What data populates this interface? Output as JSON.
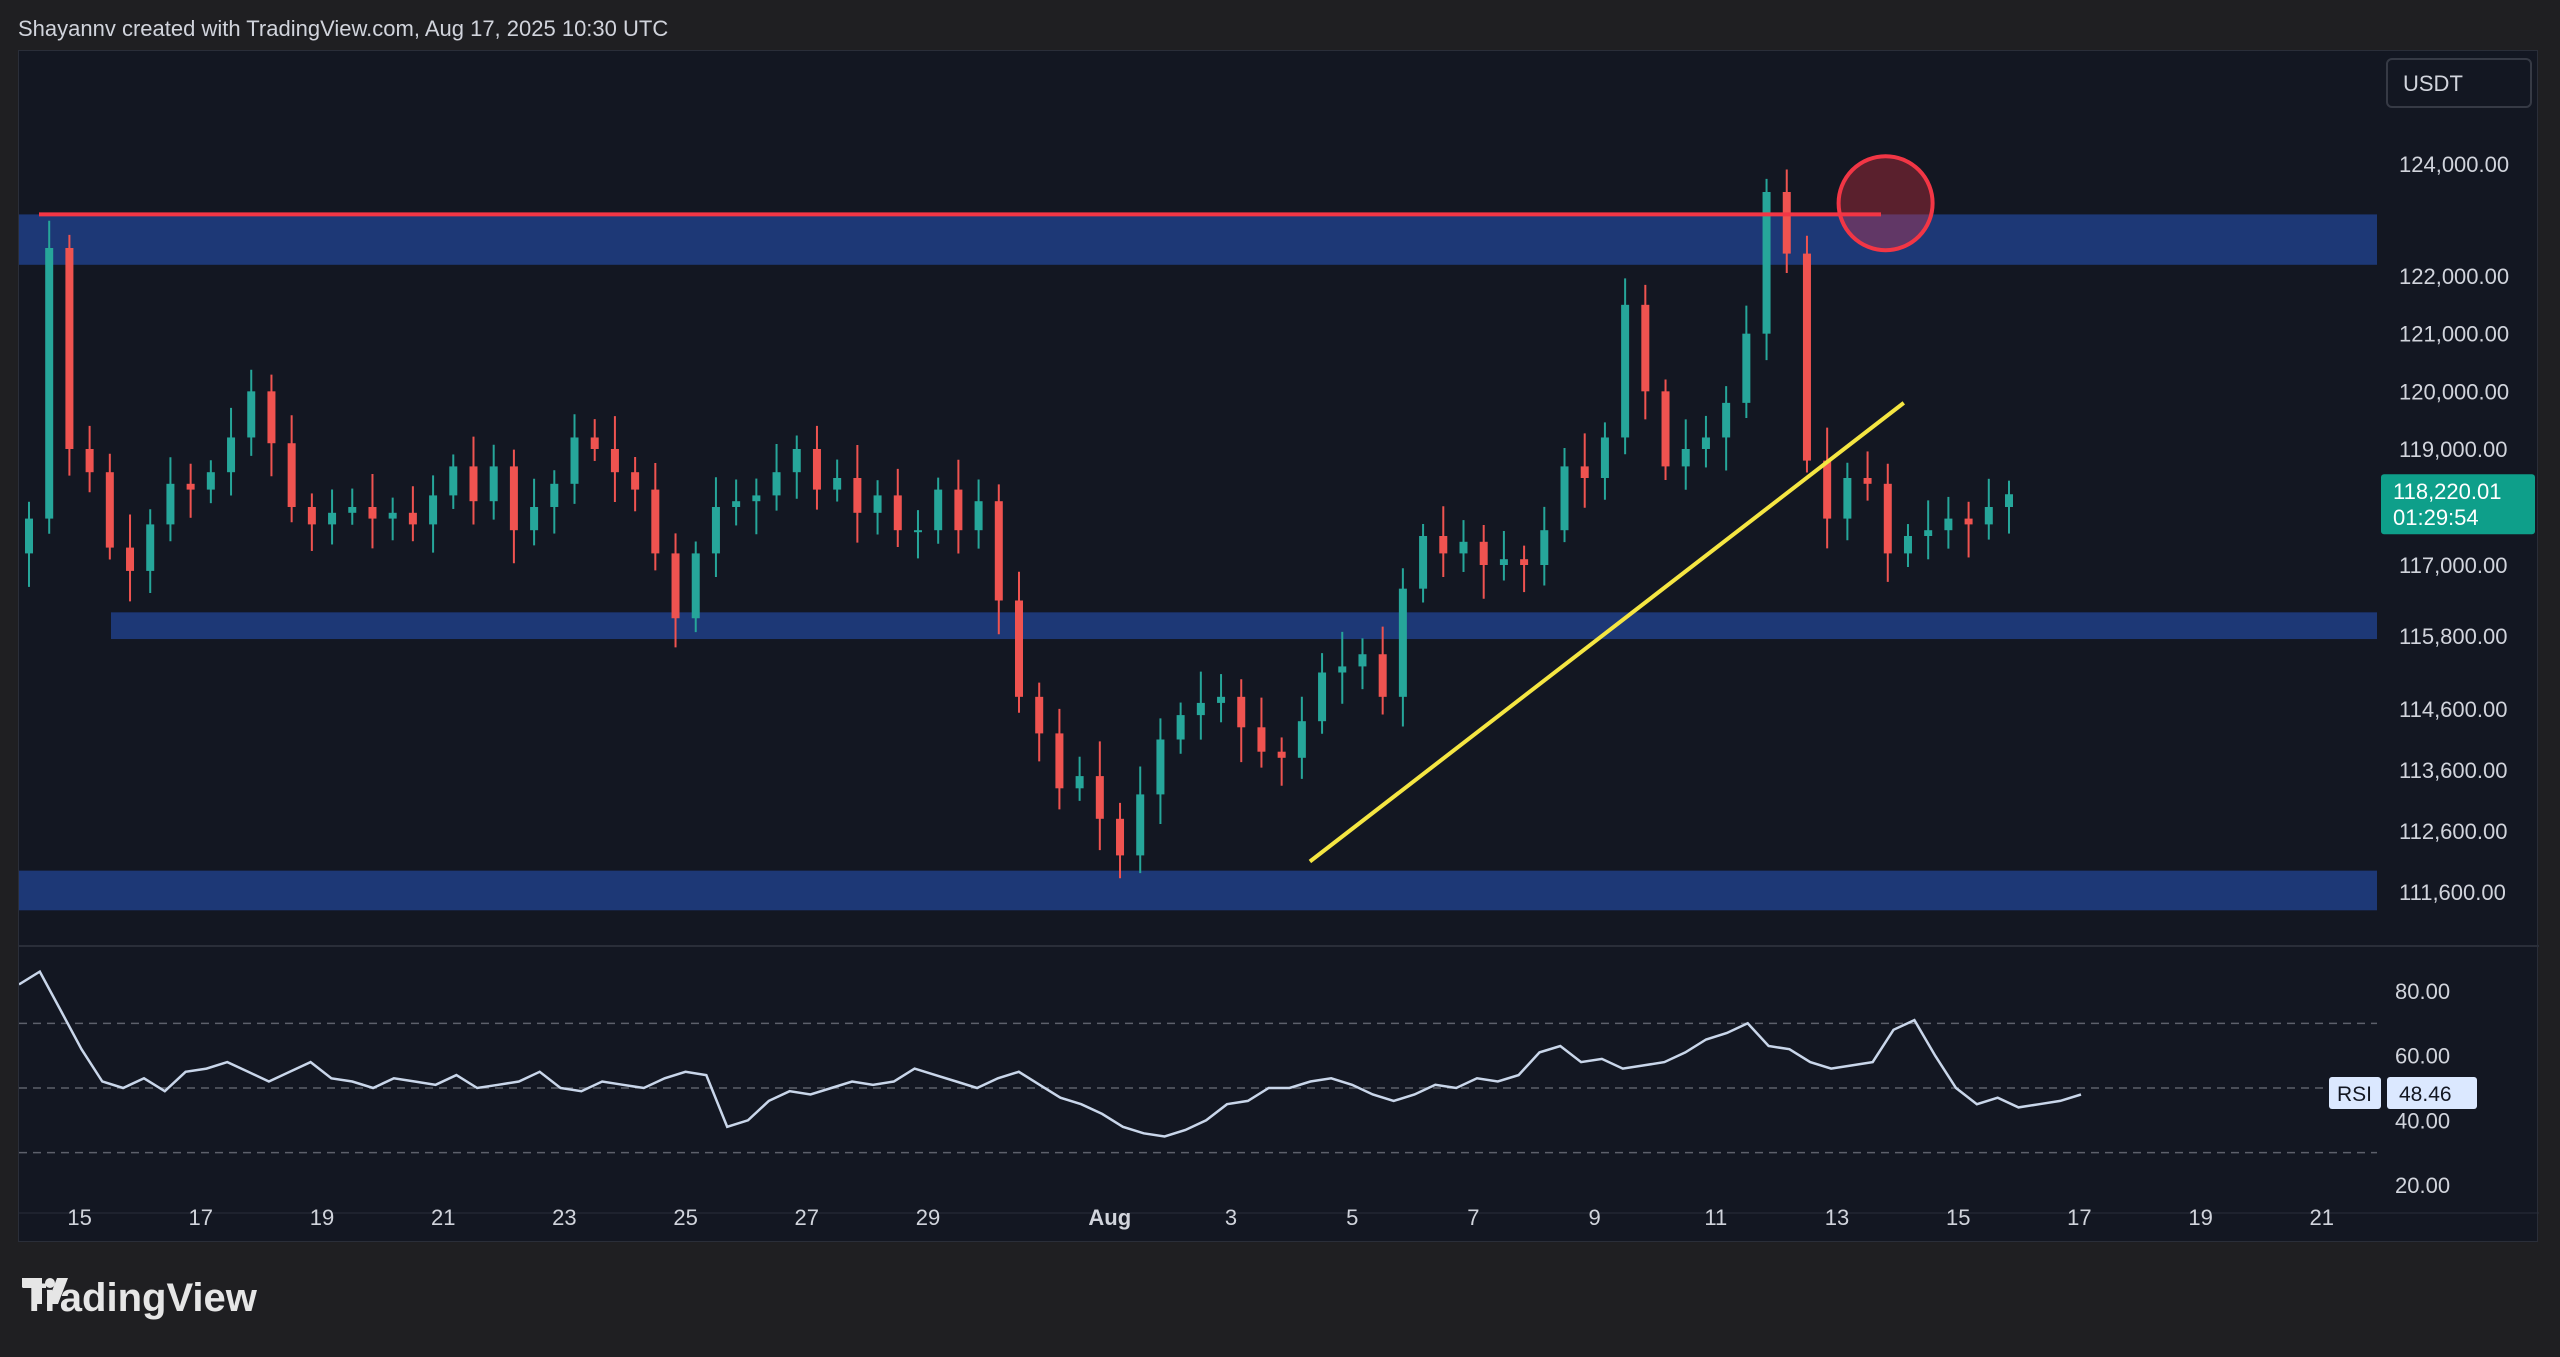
{
  "header": {
    "text": "Shayannv created with TradingView.com, Aug 17, 2025 10:30 UTC"
  },
  "footer": {
    "brand": "TradingView"
  },
  "colors": {
    "up": "#26a69a",
    "down": "#ef5350",
    "zone": "#1e3a7b",
    "resistance_line": "#f23645",
    "trendline": "#f5e642",
    "rsi": "#c9d6ea",
    "last_price_bg": "#0e9f8a"
  },
  "chart_data": [
    {
      "type": "candlestick",
      "symbol_currency": "USDT",
      "last_price": {
        "value": "118,220.01",
        "countdown": "01:29:54"
      },
      "y_ticks": [
        "124,000.00",
        "122,000.00",
        "121,000.00",
        "120,000.00",
        "119,000.00",
        "117,000.00",
        "115,800.00",
        "114,600.00",
        "113,600.00",
        "112,600.00",
        "111,600.00"
      ],
      "x_ticks": [
        "15",
        "17",
        "19",
        "21",
        "23",
        "25",
        "27",
        "29",
        "Aug",
        "3",
        "5",
        "7",
        "9",
        "11",
        "13",
        "15",
        "17",
        "19",
        "21"
      ],
      "zones": [
        [
          122200,
          123100
        ],
        [
          115750,
          116200
        ],
        [
          111300,
          111950
        ]
      ],
      "resistance_line": 123100,
      "highlight_circle": {
        "date": "Aug 14",
        "price": 123300
      },
      "trendline": [
        {
          "date": "Aug 4.5",
          "price": 112100
        },
        {
          "date": "Aug 14.3",
          "price": 119800
        }
      ],
      "approx_closes": [
        117800,
        122500,
        119000,
        118600,
        117300,
        116900,
        117700,
        118400,
        118300,
        118600,
        119200,
        120000,
        119100,
        118000,
        117700,
        117900,
        118000,
        117800,
        117900,
        117700,
        118200,
        118700,
        118100,
        118700,
        117600,
        118000,
        118400,
        119200,
        119000,
        118600,
        118300,
        117200,
        116100,
        117200,
        118000,
        118100,
        118200,
        118600,
        119000,
        118300,
        118500,
        117900,
        118200,
        117600,
        117600,
        118300,
        117600,
        118100,
        116400,
        114800,
        114200,
        113300,
        113500,
        112800,
        112200,
        113200,
        114100,
        114500,
        114700,
        114800,
        114300,
        113900,
        113800,
        114400,
        115200,
        115300,
        115500,
        114800,
        116600,
        117500,
        117200,
        117400,
        117000,
        117100,
        117000,
        117600,
        118700,
        118500,
        119200,
        121500,
        120000,
        118700,
        119000,
        119200,
        119800,
        121000,
        123500,
        122400,
        118800,
        117800,
        118500,
        118400,
        117200,
        117500,
        117600,
        117800,
        117700,
        118000,
        118220
      ]
    },
    {
      "type": "line",
      "name": "RSI",
      "last_value": "48.46",
      "y_ticks": [
        "80.00",
        "60.00",
        "40.00",
        "20.00"
      ],
      "ylim": [
        20,
        85
      ],
      "values": [
        82,
        86,
        74,
        62,
        52,
        50,
        53,
        49,
        55,
        56,
        58,
        55,
        52,
        55,
        58,
        53,
        52,
        50,
        53,
        52,
        51,
        54,
        50,
        51,
        52,
        55,
        50,
        49,
        52,
        51,
        50,
        53,
        55,
        54,
        38,
        40,
        46,
        49,
        48,
        50,
        52,
        51,
        52,
        56,
        54,
        52,
        50,
        53,
        55,
        51,
        47,
        45,
        42,
        38,
        36,
        35,
        37,
        40,
        45,
        46,
        50,
        50,
        52,
        53,
        51,
        48,
        46,
        48,
        51,
        50,
        53,
        52,
        54,
        61,
        63,
        58,
        59,
        56,
        57,
        58,
        61,
        65,
        67,
        70,
        63,
        62,
        58,
        56,
        57,
        58,
        68,
        71,
        60,
        50,
        45,
        47,
        44,
        45,
        46,
        48
      ]
    }
  ]
}
